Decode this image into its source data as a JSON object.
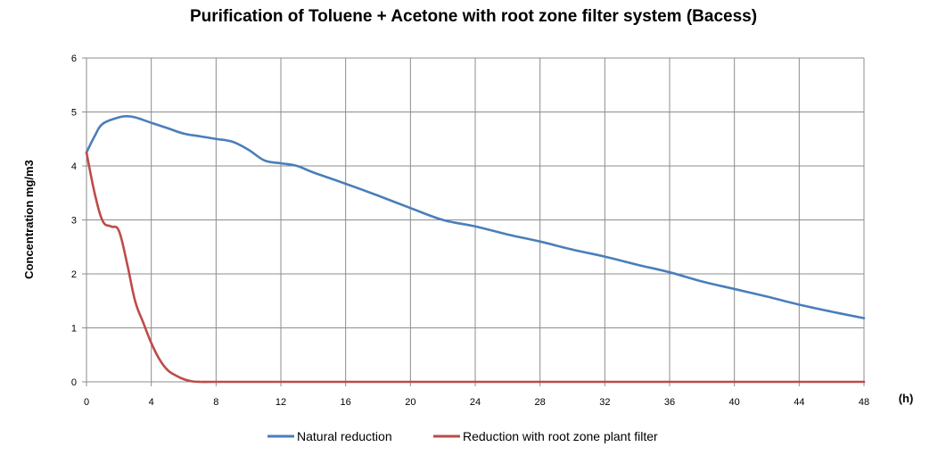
{
  "chart_data": {
    "type": "line",
    "title": "Purification of Toluene + Acetone with root zone filter system (Bacess)",
    "xlabel": "(h)",
    "ylabel": "Concentration mg/m3",
    "xlim": [
      0,
      48
    ],
    "ylim": [
      0,
      6
    ],
    "xticks": [
      "0",
      "4",
      "8",
      "12",
      "16",
      "20",
      "24",
      "28",
      "32",
      "36",
      "40",
      "44",
      "48"
    ],
    "yticks": [
      "0",
      "1",
      "2",
      "3",
      "4",
      "5",
      "6"
    ],
    "grid": true,
    "legend_position": "bottom",
    "series": [
      {
        "name": "Natural reduction",
        "color": "#4a7ebb",
        "points": [
          [
            0,
            4.25
          ],
          [
            0.5,
            4.55
          ],
          [
            1,
            4.78
          ],
          [
            2,
            4.9
          ],
          [
            2.5,
            4.92
          ],
          [
            3,
            4.9
          ],
          [
            4,
            4.8
          ],
          [
            5,
            4.7
          ],
          [
            6,
            4.6
          ],
          [
            7,
            4.55
          ],
          [
            8,
            4.5
          ],
          [
            9,
            4.45
          ],
          [
            10,
            4.3
          ],
          [
            11,
            4.1
          ],
          [
            12,
            4.05
          ],
          [
            13,
            4.0
          ],
          [
            14,
            3.88
          ],
          [
            16,
            3.67
          ],
          [
            18,
            3.45
          ],
          [
            20,
            3.22
          ],
          [
            22,
            3.0
          ],
          [
            24,
            2.88
          ],
          [
            26,
            2.73
          ],
          [
            28,
            2.6
          ],
          [
            30,
            2.45
          ],
          [
            32,
            2.32
          ],
          [
            34,
            2.17
          ],
          [
            36,
            2.03
          ],
          [
            38,
            1.86
          ],
          [
            40,
            1.72
          ],
          [
            42,
            1.58
          ],
          [
            44,
            1.43
          ],
          [
            46,
            1.3
          ],
          [
            48,
            1.18
          ]
        ]
      },
      {
        "name": "Reduction with root zone plant filter",
        "color": "#be4b48",
        "points": [
          [
            0,
            4.25
          ],
          [
            0.5,
            3.5
          ],
          [
            1,
            2.98
          ],
          [
            1.5,
            2.88
          ],
          [
            2,
            2.8
          ],
          [
            2.5,
            2.2
          ],
          [
            3,
            1.5
          ],
          [
            3.5,
            1.1
          ],
          [
            4,
            0.72
          ],
          [
            4.5,
            0.42
          ],
          [
            5,
            0.22
          ],
          [
            5.5,
            0.12
          ],
          [
            6,
            0.05
          ],
          [
            6.5,
            0.01
          ],
          [
            7,
            0
          ],
          [
            8,
            0
          ],
          [
            12,
            0
          ],
          [
            16,
            0
          ],
          [
            20,
            0
          ],
          [
            24,
            0
          ],
          [
            28,
            0
          ],
          [
            32,
            0
          ],
          [
            36,
            0
          ],
          [
            40,
            0
          ],
          [
            44,
            0
          ],
          [
            48,
            0
          ]
        ]
      }
    ]
  }
}
